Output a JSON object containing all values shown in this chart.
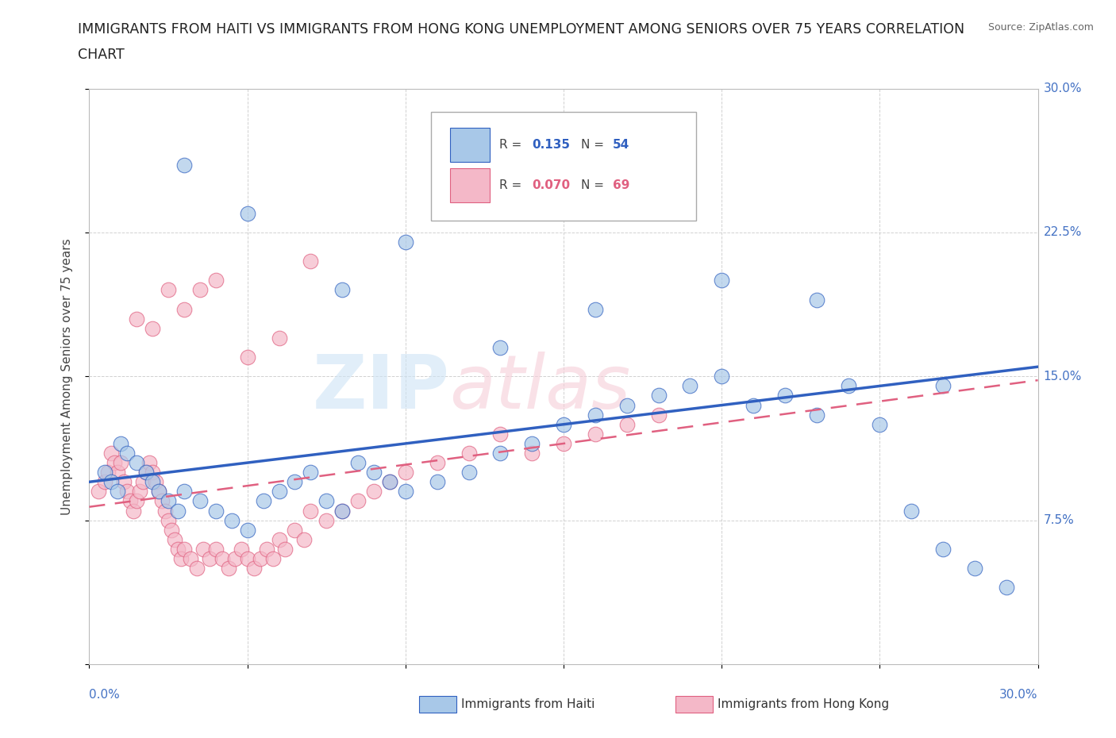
{
  "title": "IMMIGRANTS FROM HAITI VS IMMIGRANTS FROM HONG KONG UNEMPLOYMENT AMONG SENIORS OVER 75 YEARS CORRELATION\nCHART",
  "source": "Source: ZipAtlas.com",
  "ylabel": "Unemployment Among Seniors over 75 years",
  "xlim": [
    0.0,
    0.3
  ],
  "ylim": [
    0.0,
    0.3
  ],
  "haiti_color": "#a8c8e8",
  "hong_kong_color": "#f4b8c8",
  "haiti_R": 0.135,
  "haiti_N": 54,
  "hong_kong_R": 0.07,
  "hong_kong_N": 69,
  "trend_haiti_color": "#3060c0",
  "trend_hong_kong_color": "#e06080",
  "haiti_x": [
    0.005,
    0.007,
    0.009,
    0.01,
    0.012,
    0.015,
    0.018,
    0.02,
    0.022,
    0.025,
    0.028,
    0.03,
    0.035,
    0.04,
    0.045,
    0.05,
    0.055,
    0.06,
    0.065,
    0.07,
    0.075,
    0.08,
    0.085,
    0.09,
    0.095,
    0.1,
    0.11,
    0.12,
    0.13,
    0.14,
    0.15,
    0.16,
    0.17,
    0.18,
    0.19,
    0.2,
    0.21,
    0.22,
    0.23,
    0.24,
    0.25,
    0.26,
    0.27,
    0.28,
    0.29,
    0.03,
    0.05,
    0.08,
    0.1,
    0.13,
    0.16,
    0.2,
    0.23,
    0.27
  ],
  "haiti_y": [
    0.1,
    0.095,
    0.09,
    0.115,
    0.11,
    0.105,
    0.1,
    0.095,
    0.09,
    0.085,
    0.08,
    0.09,
    0.085,
    0.08,
    0.075,
    0.07,
    0.085,
    0.09,
    0.095,
    0.1,
    0.085,
    0.08,
    0.105,
    0.1,
    0.095,
    0.09,
    0.095,
    0.1,
    0.11,
    0.115,
    0.125,
    0.13,
    0.135,
    0.14,
    0.145,
    0.15,
    0.135,
    0.14,
    0.13,
    0.145,
    0.125,
    0.08,
    0.06,
    0.05,
    0.04,
    0.26,
    0.235,
    0.195,
    0.22,
    0.165,
    0.185,
    0.2,
    0.19,
    0.145
  ],
  "hong_kong_x": [
    0.003,
    0.005,
    0.006,
    0.007,
    0.008,
    0.009,
    0.01,
    0.011,
    0.012,
    0.013,
    0.014,
    0.015,
    0.016,
    0.017,
    0.018,
    0.019,
    0.02,
    0.021,
    0.022,
    0.023,
    0.024,
    0.025,
    0.026,
    0.027,
    0.028,
    0.029,
    0.03,
    0.032,
    0.034,
    0.036,
    0.038,
    0.04,
    0.042,
    0.044,
    0.046,
    0.048,
    0.05,
    0.052,
    0.054,
    0.056,
    0.058,
    0.06,
    0.062,
    0.065,
    0.068,
    0.07,
    0.075,
    0.08,
    0.085,
    0.09,
    0.095,
    0.1,
    0.11,
    0.12,
    0.13,
    0.14,
    0.15,
    0.16,
    0.17,
    0.18,
    0.015,
    0.02,
    0.025,
    0.03,
    0.035,
    0.04,
    0.05,
    0.06,
    0.07
  ],
  "hong_kong_y": [
    0.09,
    0.095,
    0.1,
    0.11,
    0.105,
    0.1,
    0.105,
    0.095,
    0.09,
    0.085,
    0.08,
    0.085,
    0.09,
    0.095,
    0.1,
    0.105,
    0.1,
    0.095,
    0.09,
    0.085,
    0.08,
    0.075,
    0.07,
    0.065,
    0.06,
    0.055,
    0.06,
    0.055,
    0.05,
    0.06,
    0.055,
    0.06,
    0.055,
    0.05,
    0.055,
    0.06,
    0.055,
    0.05,
    0.055,
    0.06,
    0.055,
    0.065,
    0.06,
    0.07,
    0.065,
    0.08,
    0.075,
    0.08,
    0.085,
    0.09,
    0.095,
    0.1,
    0.105,
    0.11,
    0.12,
    0.11,
    0.115,
    0.12,
    0.125,
    0.13,
    0.18,
    0.175,
    0.195,
    0.185,
    0.195,
    0.2,
    0.16,
    0.17,
    0.21
  ]
}
